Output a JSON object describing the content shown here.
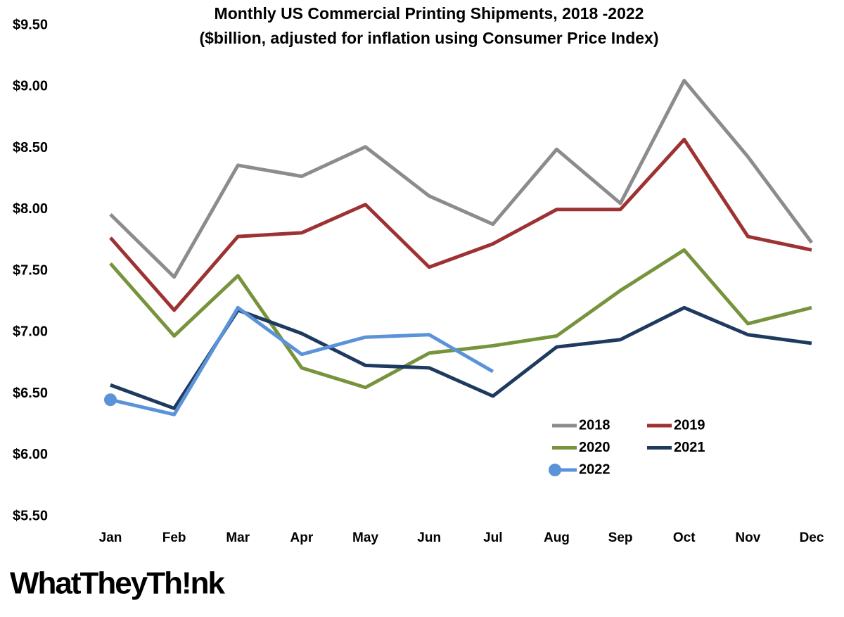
{
  "chart_data": {
    "type": "line",
    "title": "Monthly US Commercial Printing Shipments, 2018 -2022",
    "subtitle": "($billion, adjusted for inflation using Consumer Price Index)",
    "categories": [
      "Jan",
      "Feb",
      "Mar",
      "Apr",
      "May",
      "Jun",
      "Jul",
      "Aug",
      "Sep",
      "Oct",
      "Nov",
      "Dec"
    ],
    "series": [
      {
        "name": "2018",
        "color": "#8c8c8c",
        "values": [
          7.96,
          7.45,
          8.36,
          8.27,
          8.51,
          8.11,
          7.88,
          8.49,
          8.05,
          9.05,
          8.43,
          7.73
        ]
      },
      {
        "name": "2019",
        "color": "#9e3232",
        "values": [
          7.77,
          7.18,
          7.78,
          7.81,
          8.04,
          7.53,
          7.72,
          8.0,
          8.0,
          8.57,
          7.78,
          7.67
        ]
      },
      {
        "name": "2020",
        "color": "#77933c",
        "values": [
          7.56,
          6.97,
          7.46,
          6.71,
          6.55,
          6.83,
          6.89,
          6.97,
          7.34,
          7.67,
          7.07,
          7.2
        ]
      },
      {
        "name": "2021",
        "color": "#1f3a5f",
        "values": [
          6.57,
          6.38,
          7.18,
          6.99,
          6.73,
          6.71,
          6.48,
          6.88,
          6.94,
          7.2,
          6.98,
          6.91
        ]
      },
      {
        "name": "2022",
        "color": "#5b93d8",
        "marker": true,
        "values": [
          6.45,
          6.33,
          7.2,
          6.82,
          6.96,
          6.98,
          6.68,
          null,
          null,
          null,
          null,
          null
        ]
      }
    ],
    "ylim": [
      5.5,
      9.5
    ],
    "yticks": [
      {
        "value": 5.5,
        "label": "$5.50"
      },
      {
        "value": 6,
        "label": "$6.00"
      },
      {
        "value": 6.5,
        "label": "$6.50"
      },
      {
        "value": 7,
        "label": "$7.00"
      },
      {
        "value": 7.5,
        "label": "$7.50"
      },
      {
        "value": 8,
        "label": "$8.00"
      },
      {
        "value": 8.5,
        "label": "$8.50"
      },
      {
        "value": 9,
        "label": "$9.00"
      },
      {
        "value": 9.5,
        "label": "$9.50"
      }
    ],
    "grid": false,
    "legend": "bottom-right",
    "logo": "WhatTheyTh!nk"
  }
}
